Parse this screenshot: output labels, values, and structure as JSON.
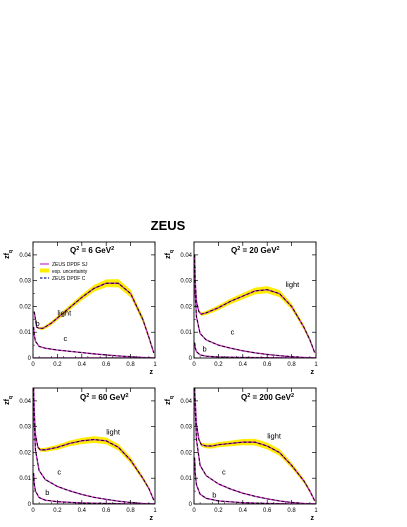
{
  "figure": {
    "title": "ZEUS"
  },
  "legend": {
    "entries": [
      {
        "label": "ZEUS DPDF SJ",
        "style": "solid",
        "color": "#cc33cc"
      },
      {
        "label": "exp. uncertainty",
        "style": "band",
        "color": "#ffee00"
      },
      {
        "label": "ZEUS DPDF C",
        "style": "dashed",
        "color": "#1a1a99"
      }
    ]
  },
  "colors": {
    "sj_line": "#cc33cc",
    "band": "#ffee00",
    "band_edge": "#d8c000",
    "c_line": "#1a1a99",
    "dash_black": "#000000",
    "frame": "#000000"
  },
  "chart_data": [
    {
      "type": "line",
      "title_prefix": "Q",
      "title_sup": "2",
      "title_mid": " = 6 GeV",
      "title_sup2": "2",
      "xlabel": "z",
      "ylabel": "zf",
      "ylabel_sub": "q",
      "xlim": [
        0,
        1
      ],
      "ylim": [
        0,
        0.045
      ],
      "xticks": [
        "0",
        "0.2",
        "0.4",
        "0.6",
        "0.8",
        "1"
      ],
      "yticks": [
        "0",
        "0.01",
        "0.02",
        "0.03",
        "0.04"
      ],
      "series": [
        {
          "name": "light",
          "x": [
            0.01,
            0.03,
            0.05,
            0.08,
            0.1,
            0.15,
            0.2,
            0.3,
            0.4,
            0.5,
            0.6,
            0.7,
            0.8,
            0.9,
            0.95,
            0.99
          ],
          "y": [
            0.018,
            0.012,
            0.0115,
            0.0115,
            0.012,
            0.0135,
            0.0155,
            0.0195,
            0.0235,
            0.027,
            0.029,
            0.029,
            0.025,
            0.015,
            0.008,
            0.002
          ],
          "err": [
            0.0,
            0.0003,
            0.0005,
            0.0006,
            0.0007,
            0.0008,
            0.0009,
            0.001,
            0.0012,
            0.0013,
            0.0015,
            0.0016,
            0.0015,
            0.0012,
            0.001,
            0.0005
          ]
        },
        {
          "name": "c",
          "x": [
            0.005,
            0.01,
            0.02,
            0.05,
            0.1,
            0.2,
            0.3,
            0.4,
            0.5,
            0.6,
            0.7,
            0.8,
            0.9,
            1.0
          ],
          "y": [
            0.012,
            0.009,
            0.0065,
            0.0045,
            0.0038,
            0.0031,
            0.0026,
            0.0021,
            0.0016,
            0.0012,
            0.0008,
            0.0005,
            0.0002,
            0.0
          ]
        },
        {
          "name": "b",
          "x": [
            0.01,
            0.05,
            0.1,
            0.2,
            0.4,
            0.6,
            0.8,
            1.0
          ],
          "y": [
            0.0,
            0.0,
            0.0,
            0.0,
            0.0,
            0.0,
            0.0,
            0.0
          ]
        }
      ],
      "labels": [
        {
          "text": "light",
          "x": 0.2,
          "y": 0.0165
        },
        {
          "text": "c",
          "x": 0.25,
          "y": 0.0065
        },
        {
          "text": "b",
          "x": 0.02,
          "y": 0.0125
        }
      ]
    },
    {
      "type": "line",
      "title_prefix": "Q",
      "title_sup": "2",
      "title_mid": " = 20 GeV",
      "title_sup2": "2",
      "xlabel": "z",
      "ylabel": "zf",
      "ylabel_sub": "q",
      "xlim": [
        0,
        1
      ],
      "ylim": [
        0,
        0.045
      ],
      "xticks": [
        "0",
        "0.2",
        "0.4",
        "0.6",
        "0.8",
        "1"
      ],
      "yticks": [
        "0",
        "0.01",
        "0.02",
        "0.03",
        "0.04"
      ],
      "series": [
        {
          "name": "light",
          "x": [
            0.005,
            0.01,
            0.02,
            0.04,
            0.06,
            0.1,
            0.15,
            0.2,
            0.3,
            0.4,
            0.5,
            0.6,
            0.7,
            0.8,
            0.9,
            0.95,
            0.99
          ],
          "y": [
            0.04,
            0.03,
            0.022,
            0.018,
            0.017,
            0.0175,
            0.0185,
            0.0195,
            0.022,
            0.024,
            0.026,
            0.0265,
            0.025,
            0.02,
            0.012,
            0.007,
            0.002
          ],
          "err": [
            0.0,
            0.0,
            0.0004,
            0.0006,
            0.0007,
            0.0008,
            0.0009,
            0.001,
            0.0011,
            0.0012,
            0.0013,
            0.0014,
            0.0014,
            0.0012,
            0.001,
            0.0008,
            0.0004
          ]
        },
        {
          "name": "c",
          "x": [
            0.005,
            0.01,
            0.02,
            0.05,
            0.1,
            0.2,
            0.3,
            0.4,
            0.5,
            0.6,
            0.7,
            0.8,
            0.9,
            1.0
          ],
          "y": [
            0.04,
            0.025,
            0.016,
            0.0095,
            0.007,
            0.005,
            0.0038,
            0.0028,
            0.002,
            0.0014,
            0.0009,
            0.0005,
            0.0002,
            0.0
          ]
        },
        {
          "name": "b",
          "x": [
            0.005,
            0.01,
            0.02,
            0.05,
            0.1,
            0.2,
            0.4,
            0.6,
            0.8,
            1.0
          ],
          "y": [
            0.006,
            0.004,
            0.0025,
            0.0012,
            0.0007,
            0.0004,
            0.0002,
            0.0001,
            0.0,
            0.0
          ]
        }
      ],
      "labels": [
        {
          "text": "light",
          "x": 0.75,
          "y": 0.0275
        },
        {
          "text": "c",
          "x": 0.3,
          "y": 0.0092
        },
        {
          "text": "b",
          "x": 0.07,
          "y": 0.0025
        }
      ]
    },
    {
      "type": "line",
      "title_prefix": "Q",
      "title_sup": "2",
      "title_mid": " = 60 GeV",
      "title_sup2": "2",
      "xlabel": "z",
      "ylabel": "zf",
      "ylabel_sub": "q",
      "xlim": [
        0,
        1
      ],
      "ylim": [
        0,
        0.045
      ],
      "xticks": [
        "0",
        "0.2",
        "0.4",
        "0.6",
        "0.8",
        "1"
      ],
      "yticks": [
        "0",
        "0.01",
        "0.02",
        "0.03",
        "0.04"
      ],
      "series": [
        {
          "name": "light",
          "x": [
            0.005,
            0.01,
            0.02,
            0.04,
            0.06,
            0.1,
            0.15,
            0.2,
            0.3,
            0.4,
            0.5,
            0.6,
            0.7,
            0.8,
            0.9,
            0.95,
            0.99
          ],
          "y": [
            0.045,
            0.036,
            0.027,
            0.022,
            0.021,
            0.021,
            0.0215,
            0.022,
            0.0235,
            0.0245,
            0.025,
            0.0245,
            0.022,
            0.017,
            0.01,
            0.006,
            0.0015
          ],
          "err": [
            0.0,
            0.0,
            0.0004,
            0.0006,
            0.0007,
            0.0008,
            0.0009,
            0.001,
            0.0011,
            0.0012,
            0.0013,
            0.0013,
            0.0013,
            0.0012,
            0.0009,
            0.0007,
            0.0004
          ]
        },
        {
          "name": "c",
          "x": [
            0.005,
            0.01,
            0.02,
            0.05,
            0.1,
            0.2,
            0.3,
            0.4,
            0.5,
            0.6,
            0.7,
            0.8,
            0.9,
            1.0
          ],
          "y": [
            0.045,
            0.032,
            0.021,
            0.013,
            0.0095,
            0.0068,
            0.0051,
            0.0037,
            0.0026,
            0.0018,
            0.0011,
            0.0006,
            0.0002,
            0.0
          ]
        },
        {
          "name": "b",
          "x": [
            0.005,
            0.01,
            0.02,
            0.05,
            0.1,
            0.2,
            0.4,
            0.6,
            0.8,
            1.0
          ],
          "y": [
            0.012,
            0.008,
            0.005,
            0.0025,
            0.0015,
            0.0009,
            0.0004,
            0.0002,
            0.0,
            0.0
          ]
        }
      ],
      "labels": [
        {
          "text": "light",
          "x": 0.6,
          "y": 0.027
        },
        {
          "text": "c",
          "x": 0.2,
          "y": 0.0115
        },
        {
          "text": "b",
          "x": 0.1,
          "y": 0.0035
        }
      ]
    },
    {
      "type": "line",
      "title_prefix": "Q",
      "title_sup": "2",
      "title_mid": " = 200 GeV",
      "title_sup2": "2",
      "xlabel": "z",
      "ylabel": "zf",
      "ylabel_sub": "q",
      "xlim": [
        0,
        1
      ],
      "ylim": [
        0,
        0.045
      ],
      "xticks": [
        "0",
        "0.2",
        "0.4",
        "0.6",
        "0.8",
        "1"
      ],
      "yticks": [
        "0",
        "0.01",
        "0.02",
        "0.03",
        "0.04"
      ],
      "series": [
        {
          "name": "light",
          "x": [
            0.005,
            0.01,
            0.02,
            0.04,
            0.06,
            0.1,
            0.15,
            0.2,
            0.3,
            0.4,
            0.5,
            0.6,
            0.7,
            0.8,
            0.9,
            0.95,
            0.99
          ],
          "y": [
            0.045,
            0.04,
            0.031,
            0.025,
            0.023,
            0.0225,
            0.0225,
            0.023,
            0.0235,
            0.024,
            0.024,
            0.0225,
            0.02,
            0.015,
            0.009,
            0.005,
            0.0012
          ],
          "err": [
            0.0,
            0.0,
            0.0005,
            0.0007,
            0.0008,
            0.0009,
            0.001,
            0.001,
            0.0011,
            0.0012,
            0.0013,
            0.0013,
            0.0013,
            0.0011,
            0.0009,
            0.0007,
            0.0004
          ]
        },
        {
          "name": "c",
          "x": [
            0.005,
            0.01,
            0.02,
            0.05,
            0.1,
            0.2,
            0.3,
            0.4,
            0.5,
            0.6,
            0.7,
            0.8,
            0.9,
            1.0
          ],
          "y": [
            0.045,
            0.037,
            0.025,
            0.015,
            0.011,
            0.0078,
            0.0058,
            0.0042,
            0.003,
            0.002,
            0.0012,
            0.0006,
            0.0002,
            0.0
          ]
        },
        {
          "name": "b",
          "x": [
            0.005,
            0.01,
            0.02,
            0.05,
            0.1,
            0.2,
            0.4,
            0.6,
            0.8,
            1.0
          ],
          "y": [
            0.018,
            0.012,
            0.0075,
            0.0038,
            0.0022,
            0.0012,
            0.0005,
            0.0002,
            0.0,
            0.0
          ]
        }
      ],
      "labels": [
        {
          "text": "light",
          "x": 0.6,
          "y": 0.0255
        },
        {
          "text": "c",
          "x": 0.23,
          "y": 0.0115
        },
        {
          "text": "b",
          "x": 0.15,
          "y": 0.0025
        }
      ]
    }
  ]
}
